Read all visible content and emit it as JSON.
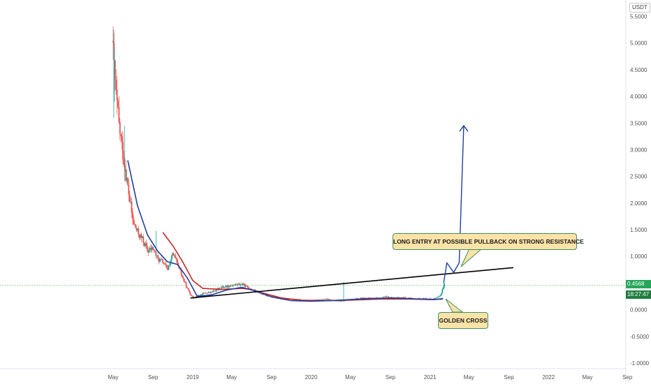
{
  "currency": "USDT",
  "colors": {
    "up": "#26a69a",
    "down": "#ef5350",
    "ma_fast": "#1f3f9f",
    "ma_slow": "#c62828",
    "trendline": "#000000",
    "projection": "#1f3f9f",
    "current_price_line": "#4caf50",
    "callout_fill": "#fbe3a8",
    "callout_border": "#3f8f60"
  },
  "current_price": "0.4568",
  "countdown": "18:27:47",
  "callouts": {
    "long_entry": "LONG ENTRY AT POSSIBLE PULLBACK ON STRONG RESISTANCE",
    "golden_cross": "GOLDEN CROSS"
  },
  "chart_data": {
    "type": "candlestick",
    "ylim": [
      -1.1,
      5.7
    ],
    "y_ticks": [
      "5.5000",
      "5.0000",
      "4.5000",
      "4.0000",
      "3.5000",
      "3.0000",
      "2.5000",
      "2.0000",
      "1.5000",
      "1.0000",
      "0.5000",
      "0.0000",
      "-0.5000",
      "-1.0000"
    ],
    "y_tick_values": [
      5.5,
      5.0,
      4.5,
      4.0,
      3.5,
      3.0,
      2.5,
      2.0,
      1.5,
      1.0,
      0.5,
      0.0,
      -0.5,
      -1.0
    ],
    "x_ticks": [
      "May",
      "Sep",
      "2019",
      "May",
      "Sep",
      "2020",
      "May",
      "Sep",
      "2021",
      "May",
      "Sep",
      "2022",
      "May",
      "Sep"
    ],
    "x_tick_dates": [
      "2018-05-01",
      "2018-09-01",
      "2019-01-01",
      "2019-05-01",
      "2019-09-01",
      "2020-01-01",
      "2020-05-01",
      "2020-09-01",
      "2021-01-01",
      "2021-05-01",
      "2021-09-01",
      "2022-01-01",
      "2022-05-01",
      "2022-09-01"
    ],
    "price_path": {
      "dates": [
        "2018-05-01",
        "2018-05-10",
        "2018-05-20",
        "2018-06-01",
        "2018-06-15",
        "2018-07-01",
        "2018-07-15",
        "2018-08-01",
        "2018-08-15",
        "2018-09-01",
        "2018-09-15",
        "2018-10-01",
        "2018-10-15",
        "2018-11-01",
        "2018-11-15",
        "2018-12-01",
        "2018-12-15",
        "2019-01-01",
        "2019-02-01",
        "2019-03-01",
        "2019-04-01",
        "2019-05-01",
        "2019-06-01",
        "2019-06-20",
        "2019-07-15",
        "2019-08-15",
        "2019-09-15",
        "2019-10-15",
        "2019-11-15",
        "2019-12-15",
        "2020-01-15",
        "2020-02-15",
        "2020-03-15",
        "2020-04-15",
        "2020-05-15",
        "2020-06-15",
        "2020-07-15",
        "2020-08-15",
        "2020-09-15",
        "2020-10-15",
        "2020-11-15",
        "2020-12-15",
        "2021-01-15",
        "2021-02-01",
        "2021-02-10",
        "2021-02-15"
      ],
      "values": [
        4.8,
        4.0,
        3.4,
        2.9,
        2.3,
        1.65,
        1.45,
        1.3,
        1.1,
        1.15,
        0.95,
        0.9,
        0.75,
        1.05,
        0.85,
        0.6,
        0.4,
        0.22,
        0.3,
        0.33,
        0.42,
        0.46,
        0.48,
        0.42,
        0.34,
        0.27,
        0.24,
        0.2,
        0.19,
        0.17,
        0.18,
        0.2,
        0.16,
        0.17,
        0.2,
        0.22,
        0.21,
        0.24,
        0.22,
        0.23,
        0.2,
        0.21,
        0.2,
        0.25,
        0.42,
        0.5
      ]
    },
    "ma_fast": {
      "dates": [
        "2018-06-15",
        "2018-07-15",
        "2018-08-15",
        "2018-09-15",
        "2018-10-15",
        "2018-11-15",
        "2018-12-15",
        "2019-01-15",
        "2019-03-01",
        "2019-04-15",
        "2019-06-01",
        "2019-07-15",
        "2019-09-01",
        "2019-11-01",
        "2020-01-01",
        "2020-03-01",
        "2020-06-01",
        "2020-09-01",
        "2020-12-01",
        "2021-01-15",
        "2021-02-10"
      ],
      "values": [
        2.8,
        1.95,
        1.4,
        1.1,
        0.9,
        0.85,
        0.6,
        0.25,
        0.28,
        0.37,
        0.42,
        0.35,
        0.24,
        0.17,
        0.16,
        0.17,
        0.2,
        0.22,
        0.2,
        0.19,
        0.21
      ]
    },
    "ma_slow": {
      "dates": [
        "2018-10-01",
        "2018-11-01",
        "2018-12-01",
        "2019-01-01",
        "2019-02-01",
        "2019-04-01",
        "2019-06-01",
        "2019-07-01",
        "2019-08-01",
        "2019-10-01",
        "2019-12-01",
        "2020-02-01",
        "2020-05-01",
        "2020-08-01",
        "2020-11-01",
        "2021-01-01",
        "2021-02-10"
      ],
      "values": [
        1.45,
        1.2,
        0.9,
        0.55,
        0.4,
        0.38,
        0.4,
        0.38,
        0.32,
        0.22,
        0.18,
        0.17,
        0.18,
        0.2,
        0.2,
        0.19,
        0.2
      ]
    },
    "trendline": {
      "dates": [
        "2018-12-25",
        "2021-09-15"
      ],
      "values": [
        0.22,
        0.79
      ]
    },
    "projection_arrow": {
      "dates": [
        "2021-02-12",
        "2021-02-22",
        "2021-03-15",
        "2021-04-01",
        "2021-04-15"
      ],
      "values": [
        0.5,
        0.88,
        0.7,
        0.88,
        3.45
      ]
    },
    "current_price_value": 0.4568
  }
}
